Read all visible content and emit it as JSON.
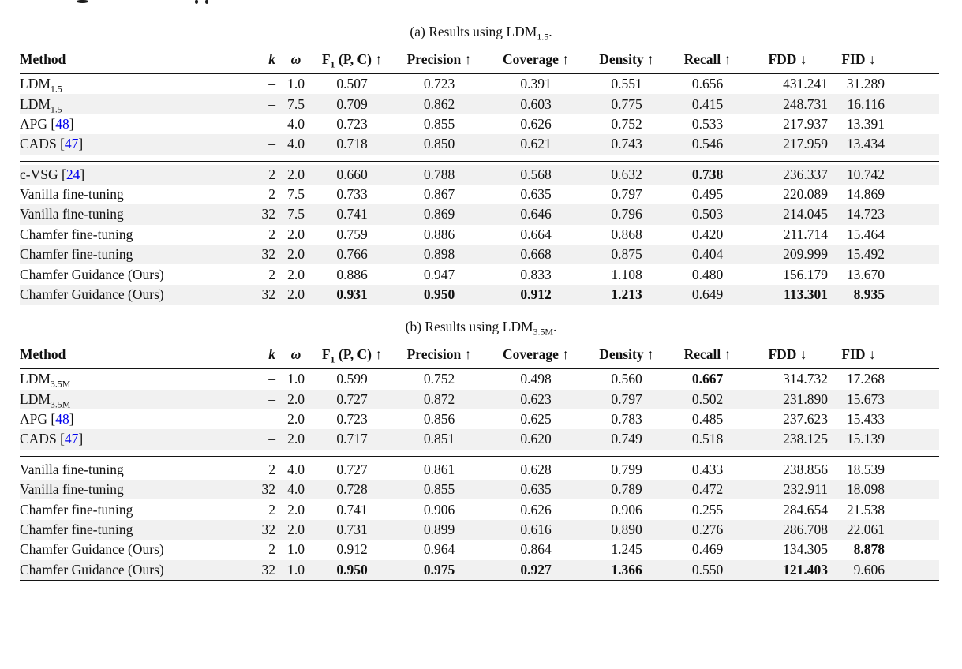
{
  "page": {
    "background": "#ffffff",
    "text_color": "#111111",
    "cite_color": "#0000ee",
    "stripe_color": "#f1f1f1"
  },
  "columns": [
    {
      "key": "method",
      "label": "Method",
      "align": "al"
    },
    {
      "key": "k",
      "label": "k",
      "italic": true,
      "align": "ar"
    },
    {
      "key": "omega",
      "label": "ω",
      "italic": true,
      "align": "ac"
    },
    {
      "key": "f1",
      "label": "F",
      "sub": "1",
      "label2": " (P, C)",
      "arrow": "↑",
      "align": "ac"
    },
    {
      "key": "precision",
      "label": "Precision",
      "arrow": "↑",
      "align": "ac"
    },
    {
      "key": "coverage",
      "label": "Coverage",
      "arrow": "↑",
      "align": "ac"
    },
    {
      "key": "density",
      "label": "Density",
      "arrow": "↑",
      "align": "ac"
    },
    {
      "key": "recall",
      "label": "Recall",
      "arrow": "↑",
      "align": "ac"
    },
    {
      "key": "fdd",
      "label": "FDD",
      "arrow": "↓",
      "align": "ar"
    },
    {
      "key": "fid",
      "label": "FID",
      "arrow": "↓",
      "align": "ar"
    },
    {
      "key": "spacer",
      "label": "",
      "align": "ac"
    }
  ],
  "value_keys": [
    "f1",
    "precision",
    "coverage",
    "density",
    "recall",
    "fdd",
    "fid"
  ],
  "tables": [
    {
      "caption": {
        "text": "(a) Results using LDM",
        "sub": "1.5",
        "suffix": "."
      },
      "groups": [
        {
          "rows": [
            {
              "method": "LDM",
              "method_sub": "1.5",
              "k": "–",
              "omega": "1.0",
              "values": [
                "0.507",
                "0.723",
                "0.391",
                "0.551",
                "0.656",
                "431.241",
                "31.289"
              ],
              "bold": [],
              "shaded": false
            },
            {
              "method": "LDM",
              "method_sub": "1.5",
              "k": "–",
              "omega": "7.5",
              "values": [
                "0.709",
                "0.862",
                "0.603",
                "0.775",
                "0.415",
                "248.731",
                "16.116"
              ],
              "bold": [],
              "shaded": true
            },
            {
              "method": "APG",
              "cite": "48",
              "k": "–",
              "omega": "4.0",
              "values": [
                "0.723",
                "0.855",
                "0.626",
                "0.752",
                "0.533",
                "217.937",
                "13.391"
              ],
              "bold": [],
              "shaded": false
            },
            {
              "method": "CADS",
              "cite": "47",
              "k": "–",
              "omega": "4.0",
              "values": [
                "0.718",
                "0.850",
                "0.621",
                "0.743",
                "0.546",
                "217.959",
                "13.434"
              ],
              "bold": [],
              "shaded": true
            }
          ]
        },
        {
          "rows": [
            {
              "method": "c-VSG",
              "cite": "24",
              "k": "2",
              "omega": "2.0",
              "values": [
                "0.660",
                "0.788",
                "0.568",
                "0.632",
                "0.738",
                "236.337",
                "10.742"
              ],
              "bold": [
                4
              ],
              "shaded": true
            },
            {
              "method": "Vanilla fine-tuning",
              "k": "2",
              "omega": "7.5",
              "values": [
                "0.733",
                "0.867",
                "0.635",
                "0.797",
                "0.495",
                "220.089",
                "14.869"
              ],
              "bold": [],
              "shaded": false
            },
            {
              "method": "Vanilla fine-tuning",
              "k": "32",
              "omega": "7.5",
              "values": [
                "0.741",
                "0.869",
                "0.646",
                "0.796",
                "0.503",
                "214.045",
                "14.723"
              ],
              "bold": [],
              "shaded": true
            },
            {
              "method": "Chamfer fine-tuning",
              "k": "2",
              "omega": "2.0",
              "values": [
                "0.759",
                "0.886",
                "0.664",
                "0.868",
                "0.420",
                "211.714",
                "15.464"
              ],
              "bold": [],
              "shaded": false
            },
            {
              "method": "Chamfer fine-tuning",
              "k": "32",
              "omega": "2.0",
              "values": [
                "0.766",
                "0.898",
                "0.668",
                "0.875",
                "0.404",
                "209.999",
                "15.492"
              ],
              "bold": [],
              "shaded": true
            },
            {
              "method": "Chamfer Guidance (Ours)",
              "k": "2",
              "omega": "2.0",
              "values": [
                "0.886",
                "0.947",
                "0.833",
                "1.108",
                "0.480",
                "156.179",
                "13.670"
              ],
              "bold": [],
              "shaded": false
            },
            {
              "method": "Chamfer Guidance (Ours)",
              "k": "32",
              "omega": "2.0",
              "values": [
                "0.931",
                "0.950",
                "0.912",
                "1.213",
                "0.649",
                "113.301",
                "8.935"
              ],
              "bold": [
                0,
                1,
                2,
                3,
                5,
                6
              ],
              "shaded": true
            }
          ]
        }
      ]
    },
    {
      "caption": {
        "text": "(b) Results using LDM",
        "sub": "3.5M",
        "suffix": "."
      },
      "groups": [
        {
          "rows": [
            {
              "method": "LDM",
              "method_sub": "3.5M",
              "k": "–",
              "omega": "1.0",
              "values": [
                "0.599",
                "0.752",
                "0.498",
                "0.560",
                "0.667",
                "314.732",
                "17.268"
              ],
              "bold": [
                4
              ],
              "shaded": false
            },
            {
              "method": "LDM",
              "method_sub": "3.5M",
              "k": "–",
              "omega": "2.0",
              "values": [
                "0.727",
                "0.872",
                "0.623",
                "0.797",
                "0.502",
                "231.890",
                "15.673"
              ],
              "bold": [],
              "shaded": true
            },
            {
              "method": "APG",
              "cite": "48",
              "k": "–",
              "omega": "2.0",
              "values": [
                "0.723",
                "0.856",
                "0.625",
                "0.783",
                "0.485",
                "237.623",
                "15.433"
              ],
              "bold": [],
              "shaded": false
            },
            {
              "method": "CADS",
              "cite": "47",
              "k": "–",
              "omega": "2.0",
              "values": [
                "0.717",
                "0.851",
                "0.620",
                "0.749",
                "0.518",
                "238.125",
                "15.139"
              ],
              "bold": [],
              "shaded": true
            }
          ]
        },
        {
          "rows": [
            {
              "method": "Vanilla fine-tuning",
              "k": "2",
              "omega": "4.0",
              "values": [
                "0.727",
                "0.861",
                "0.628",
                "0.799",
                "0.433",
                "238.856",
                "18.539"
              ],
              "bold": [],
              "shaded": false
            },
            {
              "method": "Vanilla fine-tuning",
              "k": "32",
              "omega": "4.0",
              "values": [
                "0.728",
                "0.855",
                "0.635",
                "0.789",
                "0.472",
                "232.911",
                "18.098"
              ],
              "bold": [],
              "shaded": true
            },
            {
              "method": "Chamfer fine-tuning",
              "k": "2",
              "omega": "2.0",
              "values": [
                "0.741",
                "0.906",
                "0.626",
                "0.906",
                "0.255",
                "284.654",
                "21.538"
              ],
              "bold": [],
              "shaded": false
            },
            {
              "method": "Chamfer fine-tuning",
              "k": "32",
              "omega": "2.0",
              "values": [
                "0.731",
                "0.899",
                "0.616",
                "0.890",
                "0.276",
                "286.708",
                "22.061"
              ],
              "bold": [],
              "shaded": true
            },
            {
              "method": "Chamfer Guidance (Ours)",
              "k": "2",
              "omega": "1.0",
              "values": [
                "0.912",
                "0.964",
                "0.864",
                "1.245",
                "0.469",
                "134.305",
                "8.878"
              ],
              "bold": [
                6
              ],
              "shaded": false
            },
            {
              "method": "Chamfer Guidance (Ours)",
              "k": "32",
              "omega": "1.0",
              "values": [
                "0.950",
                "0.975",
                "0.927",
                "1.366",
                "0.550",
                "121.403",
                "9.606"
              ],
              "bold": [
                0,
                1,
                2,
                3,
                5
              ],
              "shaded": true
            }
          ]
        }
      ]
    }
  ]
}
